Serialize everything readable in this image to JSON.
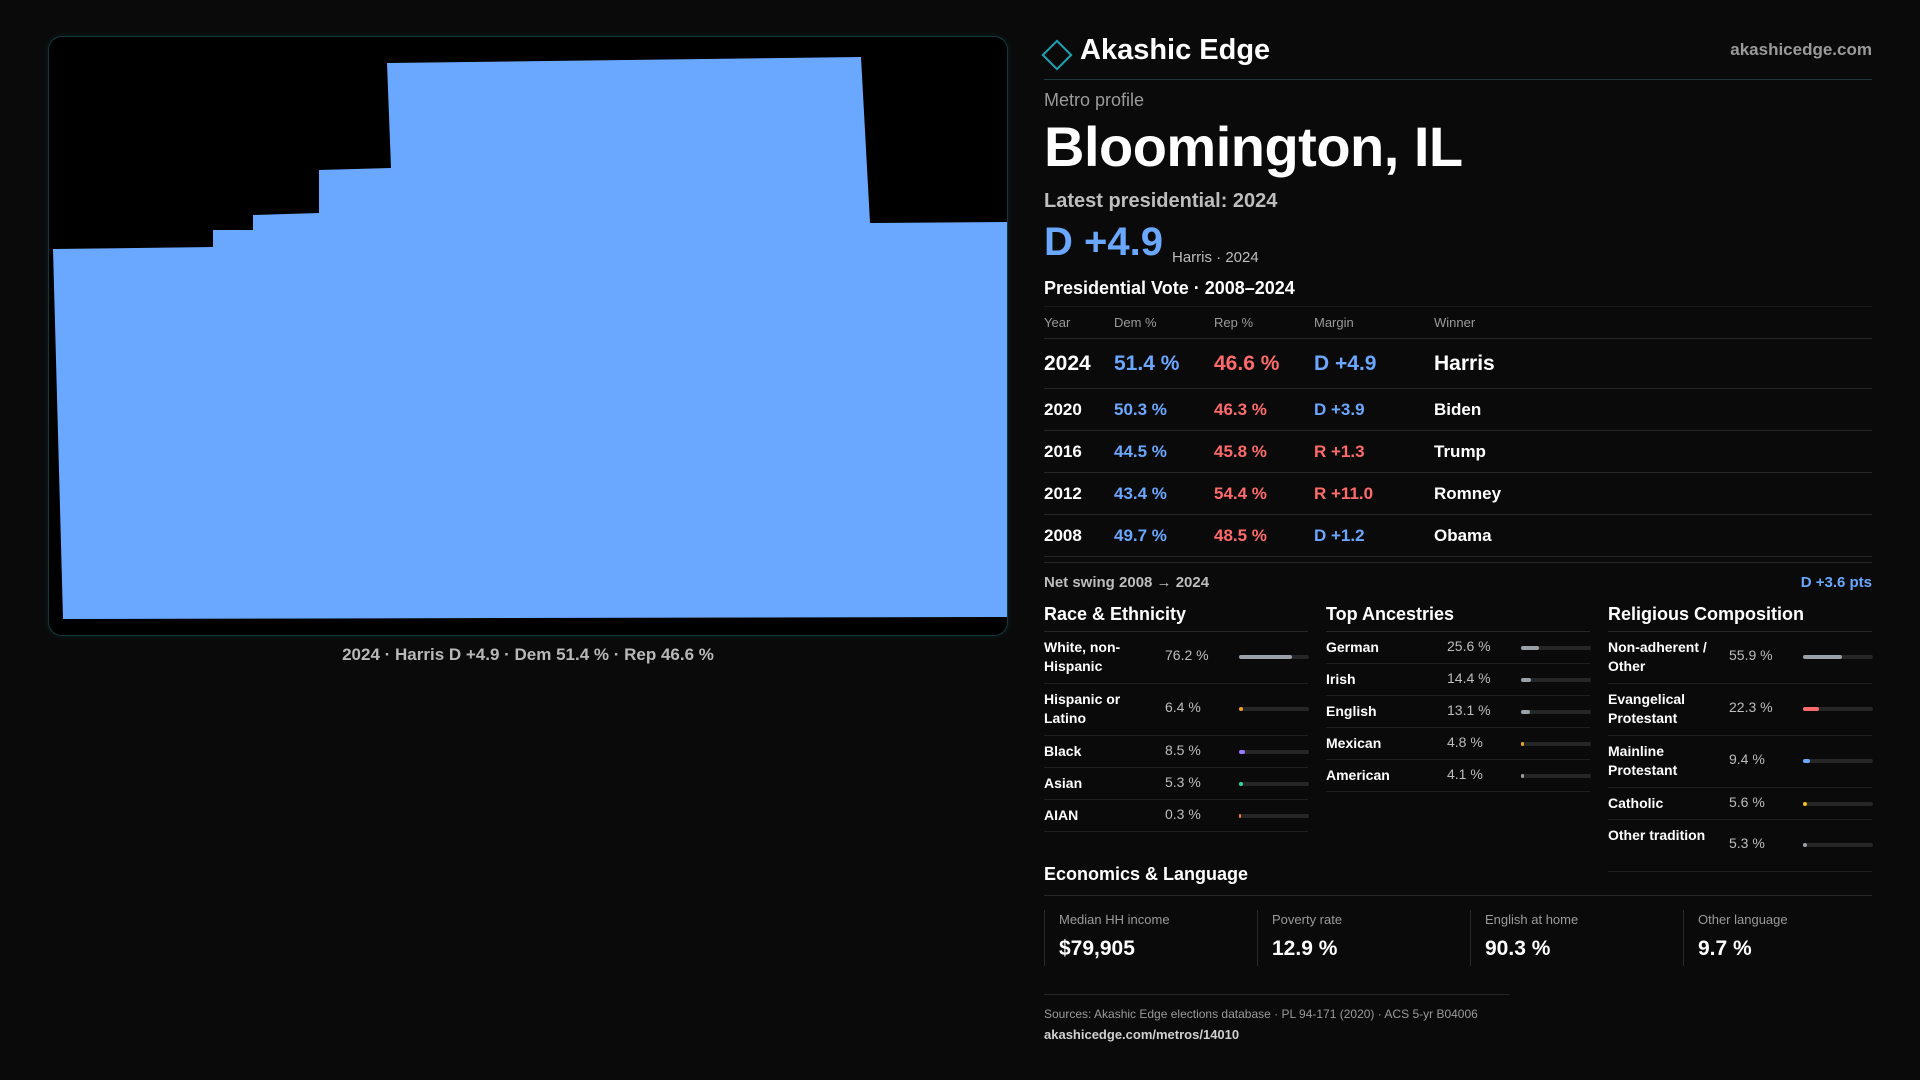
{
  "map": {
    "fill_color": "#6aa7ff",
    "caption": "2024 · Harris D +4.9 · Dem 51.4 % · Rep 46.6 %"
  },
  "brand": {
    "name": "Akashic Edge",
    "url": "akashicedge.com",
    "logo_icon": "diamond-outline-icon"
  },
  "profile": {
    "eyebrow": "Metro profile",
    "title": "Bloomington, IL",
    "latest_label": "Latest presidential: 2024",
    "headline_margin": "D +4.9",
    "headline_sub": "Harris · 2024"
  },
  "presidential": {
    "title": "Presidential Vote · 2008–2024",
    "headers": {
      "year": "Year",
      "dem": "Dem %",
      "rep": "Rep %",
      "margin": "Margin",
      "winner": "Winner"
    },
    "rows": [
      {
        "year": "2024",
        "dem": "51.4 %",
        "rep": "46.6 %",
        "margin": "D +4.9",
        "party": "dem",
        "winner": "Harris"
      },
      {
        "year": "2020",
        "dem": "50.3 %",
        "rep": "46.3 %",
        "margin": "D +3.9",
        "party": "dem",
        "winner": "Biden"
      },
      {
        "year": "2016",
        "dem": "44.5 %",
        "rep": "45.8 %",
        "margin": "R +1.3",
        "party": "rep",
        "winner": "Trump"
      },
      {
        "year": "2012",
        "dem": "43.4 %",
        "rep": "54.4 %",
        "margin": "R +11.0",
        "party": "rep",
        "winner": "Romney"
      },
      {
        "year": "2008",
        "dem": "49.7 %",
        "rep": "48.5 %",
        "margin": "D +1.2",
        "party": "dem",
        "winner": "Obama"
      }
    ],
    "swing_label": "Net swing 2008 → 2024",
    "swing_value": "D +3.6 pts"
  },
  "race": {
    "title": "Race & Ethnicity",
    "rows": [
      {
        "label": "White, non-Hispanic",
        "value": "76.2 %",
        "pct": 76.2,
        "color": "#9aa0a8"
      },
      {
        "label": "Hispanic or Latino",
        "value": "6.4 %",
        "pct": 6.4,
        "color": "#f0a020"
      },
      {
        "label": "Black",
        "value": "8.5 %",
        "pct": 8.5,
        "color": "#9a7aff"
      },
      {
        "label": "Asian",
        "value": "5.3 %",
        "pct": 5.3,
        "color": "#2ad69a"
      },
      {
        "label": "AIAN",
        "value": "0.3 %",
        "pct": 0.3,
        "color": "#ff7a3a"
      }
    ]
  },
  "ancestry": {
    "title": "Top Ancestries",
    "rows": [
      {
        "label": "German",
        "value": "25.6 %",
        "pct": 25.6,
        "color": "#9aa0a8"
      },
      {
        "label": "Irish",
        "value": "14.4 %",
        "pct": 14.4,
        "color": "#9aa0a8"
      },
      {
        "label": "English",
        "value": "13.1 %",
        "pct": 13.1,
        "color": "#9aa0a8"
      },
      {
        "label": "Mexican",
        "value": "4.8 %",
        "pct": 4.8,
        "color": "#f0a020"
      },
      {
        "label": "American",
        "value": "4.1 %",
        "pct": 4.1,
        "color": "#9aa0a8"
      }
    ]
  },
  "religion": {
    "title": "Religious Composition",
    "rows": [
      {
        "label": "Non-adherent / Other",
        "value": "55.9 %",
        "pct": 55.9,
        "color": "#9aa0a8"
      },
      {
        "label": "Evangelical Protestant",
        "value": "22.3 %",
        "pct": 22.3,
        "color": "#ff6b6b"
      },
      {
        "label": "Mainline Protestant",
        "value": "9.4 %",
        "pct": 9.4,
        "color": "#6aa7ff"
      },
      {
        "label": "Catholic",
        "value": "5.6 %",
        "pct": 5.6,
        "color": "#f0c020"
      },
      {
        "label": "Other tradition",
        "value": "5.3 %",
        "pct": 5.3,
        "color": "#9aa0a8"
      }
    ]
  },
  "economics": {
    "title": "Economics & Language",
    "cells": [
      {
        "label": "Median HH income",
        "value": "$79,905"
      },
      {
        "label": "Poverty rate",
        "value": "12.9 %"
      },
      {
        "label": "English at home",
        "value": "90.3 %"
      },
      {
        "label": "Other language",
        "value": "9.7 %"
      }
    ]
  },
  "sources": {
    "text": "Sources: Akashic Edge elections database · PL 94-171 (2020) · ACS 5-yr B04006",
    "url": "akashicedge.com/metros/14010"
  }
}
